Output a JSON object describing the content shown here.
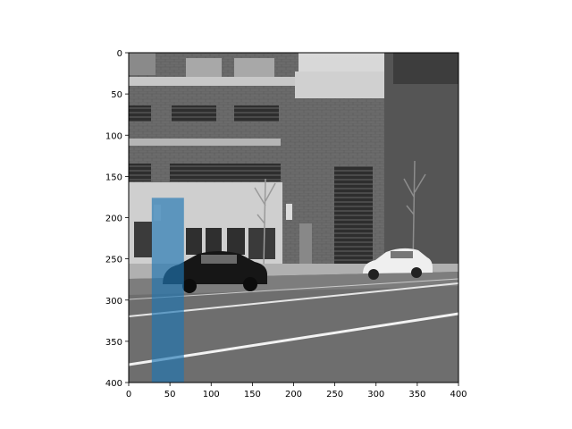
{
  "chart_data": {
    "type": "image",
    "title": "",
    "xlabel": "",
    "ylabel": "",
    "xlim": [
      0,
      400
    ],
    "ylim": [
      400,
      0
    ],
    "x_ticks": [
      0,
      50,
      100,
      150,
      200,
      250,
      300,
      350,
      400
    ],
    "y_ticks": [
      0,
      50,
      100,
      150,
      200,
      250,
      300,
      350,
      400
    ],
    "image": "grayscale street photo: brick building with windows, parked black sedan and white sedan, road with white lane lines",
    "highlight": {
      "shape": "rectangle",
      "x": [
        28,
        67
      ],
      "y": [
        176,
        400
      ],
      "color": "#1f77b4",
      "opacity": 0.65
    },
    "grid": false,
    "legend": "none"
  }
}
